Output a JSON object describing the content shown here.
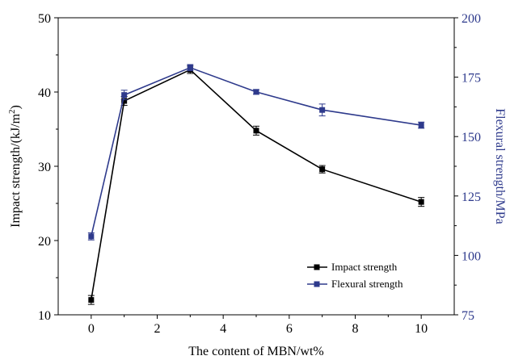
{
  "chart_data": {
    "type": "line",
    "x": [
      0,
      1,
      3,
      5,
      7,
      10
    ],
    "xlabel": "The content of MBN/wt%",
    "xlim": [
      -1,
      11
    ],
    "xticks": [
      0,
      2,
      4,
      6,
      8,
      10
    ],
    "left_axis": {
      "label_main": "Impact strength/(kJ/m",
      "label_sup": "2",
      "label_end": ")",
      "ylim": [
        10,
        50
      ],
      "ticks": [
        10,
        20,
        30,
        40,
        50
      ]
    },
    "right_axis": {
      "label": "Flexural strength/MPa",
      "ylim": [
        75,
        200
      ],
      "ticks": [
        75,
        100,
        125,
        150,
        175,
        200
      ],
      "color": "#2e3a8c"
    },
    "series": [
      {
        "name": "Impact strength",
        "axis": "left",
        "color": "#000000",
        "values": [
          12.0,
          38.8,
          43.0,
          34.8,
          29.6,
          25.2
        ],
        "errors": [
          0.6,
          0.6,
          0.5,
          0.6,
          0.5,
          0.6
        ]
      },
      {
        "name": "Flexural strength",
        "axis": "right",
        "color": "#2e3a8c",
        "values": [
          108.0,
          167.5,
          179.0,
          168.8,
          161.2,
          154.8
        ],
        "errors": [
          1.5,
          2.0,
          1.3,
          1.0,
          2.5,
          1.3
        ]
      }
    ],
    "legend_position": "bottom-right",
    "grid": false
  }
}
